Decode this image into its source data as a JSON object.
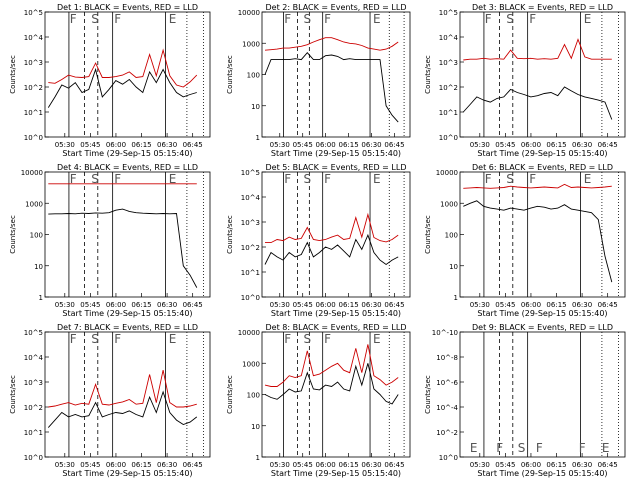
{
  "page": {
    "width": 640,
    "height": 480
  },
  "chart_data": [
    {
      "type": "line",
      "title": "Det 1: BLACK = Events, RED = LLD",
      "xlabel": "Start Time (29-Sep-15 05:15:40)",
      "ylabel": "Counts/sec",
      "yscale": "log",
      "yticks": [
        "10^0",
        "10^1",
        "10^2",
        "10^3",
        "10^4",
        "10^5"
      ],
      "xticks": [
        "05:30",
        "05:45",
        "06:00",
        "06:15",
        "06:30",
        "06:45"
      ],
      "markers": [
        "F",
        "S",
        "F",
        "E"
      ],
      "series": [
        {
          "name": "Events",
          "color": "#000000",
          "values": [
            15,
            40,
            120,
            90,
            150,
            60,
            80,
            500,
            40,
            80,
            180,
            130,
            200,
            100,
            60,
            400,
            150,
            500,
            150,
            60,
            40,
            50,
            60
          ]
        },
        {
          "name": "LLD",
          "color": "#cc0000",
          "values": [
            150,
            140,
            200,
            300,
            250,
            240,
            260,
            900,
            240,
            240,
            260,
            300,
            400,
            240,
            260,
            2000,
            280,
            3000,
            280,
            120,
            100,
            160,
            300
          ]
        }
      ]
    },
    {
      "type": "line",
      "title": "Det 2: BLACK = Events, RED = LLD",
      "xlabel": "Start Time (29-Sep-15 05:15:40)",
      "ylabel": "Counts/sec",
      "yscale": "log",
      "yticks": [
        "1",
        "10",
        "100",
        "1000",
        "10000"
      ],
      "xticks": [
        "05:30",
        "05:45",
        "06:00",
        "06:15",
        "06:30",
        "06:45"
      ],
      "markers": [
        "F",
        "S",
        "F",
        "E"
      ],
      "series": [
        {
          "name": "Events",
          "color": "#000000",
          "values": [
            100,
            300,
            300,
            300,
            300,
            320,
            300,
            500,
            300,
            300,
            400,
            420,
            380,
            300,
            320,
            300,
            300,
            300,
            300,
            300,
            10,
            5,
            3
          ]
        },
        {
          "name": "LLD",
          "color": "#cc0000",
          "values": [
            600,
            620,
            650,
            700,
            700,
            750,
            800,
            900,
            1100,
            1300,
            1500,
            1500,
            1300,
            1100,
            1000,
            950,
            850,
            700,
            650,
            600,
            650,
            800,
            1100
          ]
        }
      ]
    },
    {
      "type": "line",
      "title": "Det 3: BLACK = Events, RED = LLD",
      "xlabel": "Start Time (29-Sep-15 05:15:40)",
      "ylabel": "Counts/sec",
      "yscale": "log",
      "yticks": [
        "10^0",
        "10^1",
        "10^2",
        "10^3",
        "10^4",
        "10^5"
      ],
      "xticks": [
        "05:30",
        "05:45",
        "06:00",
        "06:15",
        "06:30",
        "06:45"
      ],
      "markers": [
        "F",
        "S",
        "F",
        "E"
      ],
      "series": [
        {
          "name": "Events",
          "color": "#000000",
          "values": [
            10,
            20,
            40,
            30,
            25,
            35,
            40,
            80,
            60,
            50,
            40,
            45,
            55,
            60,
            45,
            100,
            70,
            50,
            40,
            35,
            30,
            25,
            5
          ]
        },
        {
          "name": "LLD",
          "color": "#cc0000",
          "values": [
            1200,
            1300,
            1300,
            1400,
            1300,
            1350,
            1300,
            3000,
            1400,
            1350,
            1400,
            1300,
            1350,
            1300,
            1400,
            5000,
            1400,
            8000,
            1600,
            1300,
            1300,
            1300,
            1300
          ]
        }
      ]
    },
    {
      "type": "line",
      "title": "Det 4: BLACK = Events, RED = LLD",
      "xlabel": "Start Time (29-Sep-15 05:15:40)",
      "ylabel": "Counts/sec",
      "yscale": "log",
      "yticks": [
        "1",
        "10",
        "100",
        "1000",
        "10000"
      ],
      "xticks": [
        "05:30",
        "05:45",
        "06:00",
        "06:15",
        "06:30",
        "06:45"
      ],
      "markers": [
        "F",
        "S",
        "F",
        "E"
      ],
      "series": [
        {
          "name": "Events",
          "color": "#000000",
          "values": [
            450,
            460,
            460,
            470,
            460,
            480,
            470,
            490,
            480,
            500,
            600,
            650,
            550,
            500,
            480,
            470,
            460,
            470,
            460,
            470,
            10,
            5,
            2
          ]
        },
        {
          "name": "LLD",
          "color": "#cc0000",
          "values": [
            4200,
            4200,
            4200,
            4200,
            4200,
            4200,
            4200,
            4200,
            4200,
            4200,
            4200,
            4200,
            4200,
            4200,
            4200,
            4200,
            4200,
            4200,
            4200,
            4200,
            4200,
            4200,
            4200
          ]
        }
      ]
    },
    {
      "type": "line",
      "title": "Det 5: BLACK = Events, RED = LLD",
      "xlabel": "Start Time (29-Sep-15 05:15:40)",
      "ylabel": "Counts/sec",
      "yscale": "log",
      "yticks": [
        "10^0",
        "10^1",
        "10^2",
        "10^3",
        "10^4",
        "10^5"
      ],
      "xticks": [
        "05:30",
        "05:45",
        "06:00",
        "06:15",
        "06:30",
        "06:45"
      ],
      "markers": [
        "F",
        "S",
        "F",
        "E"
      ],
      "series": [
        {
          "name": "Events",
          "color": "#000000",
          "values": [
            20,
            60,
            40,
            30,
            60,
            40,
            50,
            150,
            40,
            60,
            100,
            80,
            120,
            70,
            40,
            200,
            80,
            300,
            60,
            30,
            20,
            30,
            40
          ]
        },
        {
          "name": "LLD",
          "color": "#cc0000",
          "values": [
            150,
            150,
            200,
            180,
            250,
            200,
            220,
            600,
            200,
            180,
            200,
            250,
            300,
            200,
            220,
            1500,
            250,
            2000,
            240,
            180,
            160,
            200,
            300
          ]
        }
      ]
    },
    {
      "type": "line",
      "title": "Det 6: BLACK = Events, RED = LLD",
      "xlabel": "Start Time (29-Sep-15 05:15:40)",
      "ylabel": "Counts/sec",
      "yscale": "log",
      "yticks": [
        "1",
        "10",
        "100",
        "1000",
        "10000"
      ],
      "xticks": [
        "05:30",
        "05:45",
        "06:00",
        "06:15",
        "06:30",
        "06:45"
      ],
      "markers": [
        "F",
        "S",
        "F",
        "E"
      ],
      "series": [
        {
          "name": "Events",
          "color": "#000000",
          "values": [
            800,
            1000,
            1200,
            800,
            700,
            650,
            600,
            700,
            650,
            600,
            700,
            800,
            750,
            650,
            700,
            900,
            650,
            600,
            550,
            500,
            300,
            20,
            3
          ]
        },
        {
          "name": "LLD",
          "color": "#cc0000",
          "values": [
            3000,
            3100,
            3200,
            3100,
            3000,
            3100,
            3200,
            3500,
            3300,
            3200,
            3100,
            3200,
            3300,
            3200,
            3100,
            4000,
            3200,
            3300,
            3200,
            3100,
            3200,
            3300,
            3500
          ]
        }
      ]
    },
    {
      "type": "line",
      "title": "Det 7: BLACK = Events, RED = LLD",
      "xlabel": "Start Time (29-Sep-15 05:15:40)",
      "ylabel": "Counts/sec",
      "yscale": "log",
      "yticks": [
        "10^0",
        "10^1",
        "10^2",
        "10^3",
        "10^4",
        "10^5"
      ],
      "xticks": [
        "05:30",
        "05:45",
        "06:00",
        "06:15",
        "06:30",
        "06:45"
      ],
      "markers": [
        "F",
        "S",
        "F",
        "E"
      ],
      "series": [
        {
          "name": "Events",
          "color": "#000000",
          "values": [
            15,
            30,
            60,
            40,
            50,
            40,
            45,
            150,
            40,
            50,
            60,
            55,
            70,
            50,
            40,
            250,
            60,
            400,
            60,
            30,
            20,
            25,
            40
          ]
        },
        {
          "name": "LLD",
          "color": "#cc0000",
          "values": [
            100,
            110,
            130,
            150,
            120,
            140,
            130,
            800,
            130,
            120,
            140,
            160,
            200,
            130,
            140,
            2000,
            150,
            3000,
            150,
            100,
            100,
            110,
            130
          ]
        }
      ]
    },
    {
      "type": "line",
      "title": "Det 8: BLACK = Events, RED = LLD",
      "xlabel": "Start Time (29-Sep-15 05:15:40)",
      "ylabel": "Counts/sec",
      "yscale": "log",
      "yticks": [
        "1",
        "10",
        "100",
        "1000",
        "10000"
      ],
      "xticks": [
        "05:30",
        "05:45",
        "06:00",
        "06:15",
        "06:30",
        "06:45"
      ],
      "markers": [
        "F",
        "S",
        "F",
        "E"
      ],
      "series": [
        {
          "name": "Events",
          "color": "#000000",
          "values": [
            100,
            80,
            70,
            100,
            150,
            120,
            130,
            500,
            150,
            140,
            200,
            180,
            250,
            150,
            130,
            800,
            200,
            1000,
            150,
            100,
            60,
            50,
            100
          ]
        },
        {
          "name": "LLD",
          "color": "#cc0000",
          "values": [
            200,
            180,
            180,
            250,
            400,
            350,
            400,
            2500,
            400,
            450,
            600,
            800,
            1000,
            600,
            500,
            3000,
            500,
            4000,
            400,
            300,
            200,
            250,
            350
          ]
        }
      ]
    },
    {
      "type": "line",
      "title": "Det 9: BLACK = Events, RED = LLD",
      "xlabel": "Start Time (29-Sep-15 05:15:40)",
      "ylabel": "Counts/sec",
      "yscale": "log",
      "yticks": [
        "10^0",
        "10^-2",
        "10^-4",
        "10^-6",
        "10^-8",
        "10^-10"
      ],
      "xticks": [
        "05:30",
        "05:45",
        "06:00",
        "06:15",
        "06:30",
        "06:45"
      ],
      "markers": [
        "E",
        "F",
        "S",
        "F",
        "F",
        "E"
      ],
      "series": []
    }
  ]
}
